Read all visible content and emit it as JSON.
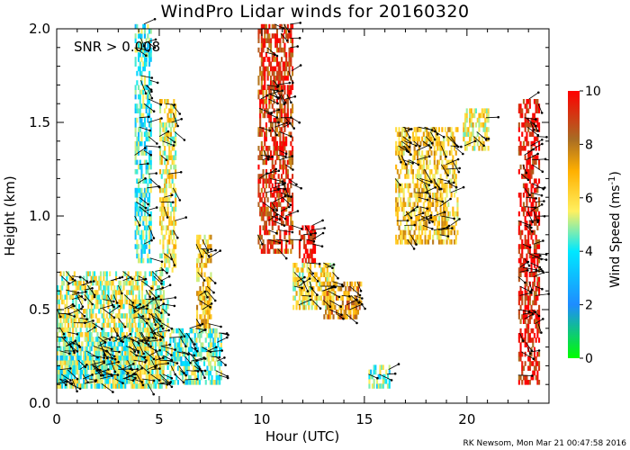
{
  "title": "WindPro Lidar winds for 20160320",
  "annotation": "SNR > 0.008",
  "footer": "RK Newsom, Mon Mar 21 00:47:58 2016",
  "chart_data": {
    "type": "heatmap",
    "title": "WindPro Lidar winds for 20160320",
    "xlabel": "Hour (UTC)",
    "ylabel": "Height (km)",
    "xlim": [
      0,
      24
    ],
    "ylim": [
      0,
      2
    ],
    "x_ticks": [
      "0",
      "5",
      "10",
      "15",
      "20"
    ],
    "y_ticks": [
      "0.0",
      "0.5",
      "1.0",
      "1.5",
      "2.0"
    ],
    "colorbar": {
      "label": "Wind Speed (ms",
      "label_sup": "-1",
      "label_close": ")",
      "range": [
        0,
        10
      ],
      "ticks": [
        "0",
        "2",
        "4",
        "6",
        "8",
        "10"
      ],
      "colors": [
        "#00ff00",
        "#1e8cff",
        "#00e8ff",
        "#fff060",
        "#ffb000",
        "#a86c24",
        "#ff0000"
      ]
    },
    "regions": [
      {
        "x": [
          0,
          5.2
        ],
        "y": [
          0.08,
          0.7
        ],
        "speed": 5.5
      },
      {
        "x": [
          0,
          3.5
        ],
        "y": [
          0.08,
          0.35
        ],
        "speed": 4.5
      },
      {
        "x": [
          3.5,
          5.4
        ],
        "y": [
          0.08,
          0.55
        ],
        "speed": 5.5
      },
      {
        "x": [
          3.8,
          4.6
        ],
        "y": [
          0.75,
          2.0
        ],
        "speed": 4.2
      },
      {
        "x": [
          5.0,
          5.8
        ],
        "y": [
          0.7,
          1.6
        ],
        "speed": 5.8
      },
      {
        "x": [
          5.5,
          8.0
        ],
        "y": [
          0.1,
          0.4
        ],
        "speed": 4.5
      },
      {
        "x": [
          6.8,
          7.5
        ],
        "y": [
          0.4,
          0.9
        ],
        "speed": 6.5
      },
      {
        "x": [
          9.8,
          11.5
        ],
        "y": [
          0.8,
          2.0
        ],
        "speed": 9.0
      },
      {
        "x": [
          11.8,
          12.6
        ],
        "y": [
          0.75,
          0.95
        ],
        "speed": 10.0
      },
      {
        "x": [
          11.5,
          13.5
        ],
        "y": [
          0.5,
          0.75
        ],
        "speed": 6.0
      },
      {
        "x": [
          13.0,
          14.8
        ],
        "y": [
          0.45,
          0.65
        ],
        "speed": 7.5
      },
      {
        "x": [
          15.2,
          16.2
        ],
        "y": [
          0.08,
          0.2
        ],
        "speed": 4.5
      },
      {
        "x": [
          16.5,
          19.5
        ],
        "y": [
          0.85,
          1.45
        ],
        "speed": 6.5
      },
      {
        "x": [
          19.8,
          21.0
        ],
        "y": [
          1.35,
          1.55
        ],
        "speed": 6.0
      },
      {
        "x": [
          22.5,
          23.5
        ],
        "y": [
          0.1,
          1.6
        ],
        "speed": 9.5
      }
    ]
  }
}
